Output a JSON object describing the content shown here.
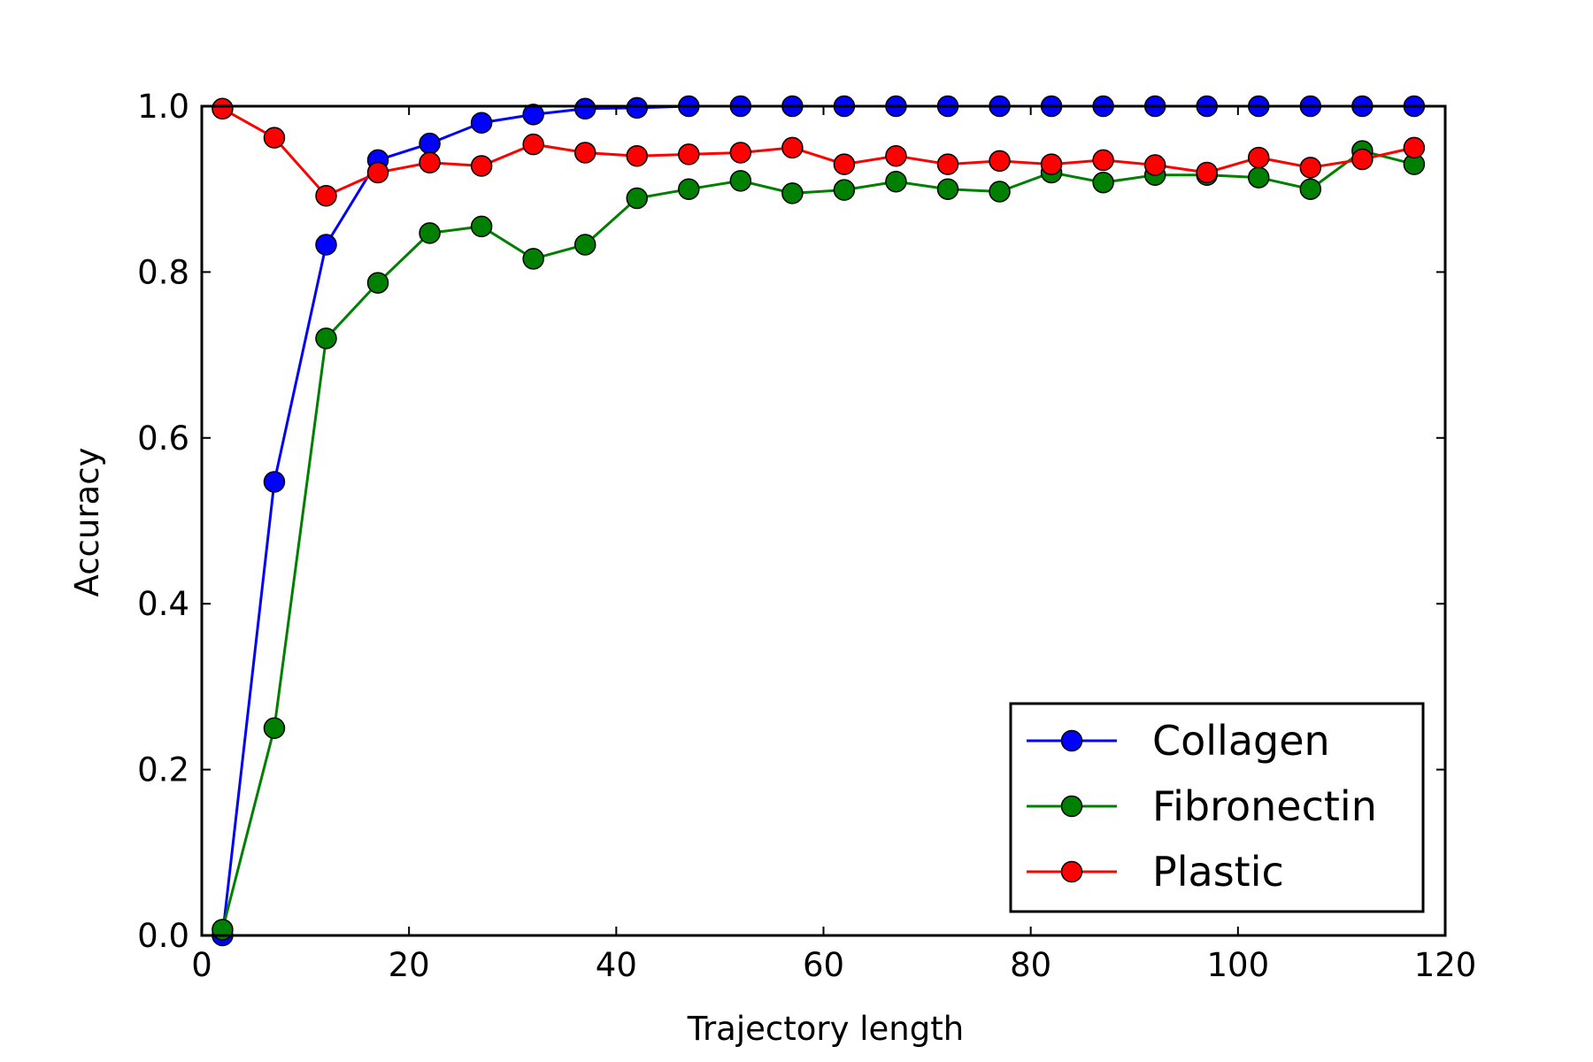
{
  "chart_data": {
    "type": "line",
    "title": "",
    "xlabel": "Trajectory length",
    "ylabel": "Accuracy",
    "xlim": [
      0,
      120
    ],
    "ylim": [
      0,
      1.0
    ],
    "xticks": [
      0,
      20,
      40,
      60,
      80,
      100,
      120
    ],
    "yticks": [
      0.0,
      0.2,
      0.4,
      0.6,
      0.8,
      1.0
    ],
    "xtick_labels": [
      "0",
      "20",
      "40",
      "60",
      "80",
      "100",
      "120"
    ],
    "ytick_labels": [
      "0.0",
      "0.2",
      "0.4",
      "0.6",
      "0.8",
      "1.0"
    ],
    "grid": false,
    "legend_position": "lower right",
    "x": [
      2,
      7,
      12,
      17,
      22,
      27,
      32,
      37,
      42,
      47,
      52,
      57,
      62,
      67,
      72,
      77,
      82,
      87,
      92,
      97,
      102,
      107,
      112,
      117
    ],
    "series": [
      {
        "name": "Collagen",
        "color": "#0000ff",
        "values": [
          0.0,
          0.547,
          0.833,
          0.935,
          0.955,
          0.98,
          0.99,
          0.997,
          0.998,
          1.0,
          1.0,
          1.0,
          1.0,
          1.0,
          1.0,
          1.0,
          1.0,
          1.0,
          1.0,
          1.0,
          1.0,
          1.0,
          1.0,
          1.0
        ]
      },
      {
        "name": "Fibronectin",
        "color": "#008000",
        "values": [
          0.007,
          0.25,
          0.72,
          0.787,
          0.847,
          0.855,
          0.816,
          0.833,
          0.889,
          0.9,
          0.91,
          0.895,
          0.899,
          0.909,
          0.9,
          0.897,
          0.92,
          0.908,
          0.917,
          0.917,
          0.914,
          0.9,
          0.946,
          0.93
        ]
      },
      {
        "name": "Plastic",
        "color": "#ff0000",
        "values": [
          0.997,
          0.962,
          0.892,
          0.92,
          0.932,
          0.928,
          0.954,
          0.944,
          0.94,
          0.942,
          0.944,
          0.95,
          0.93,
          0.94,
          0.93,
          0.934,
          0.93,
          0.935,
          0.929,
          0.92,
          0.938,
          0.926,
          0.936,
          0.95
        ]
      }
    ]
  }
}
